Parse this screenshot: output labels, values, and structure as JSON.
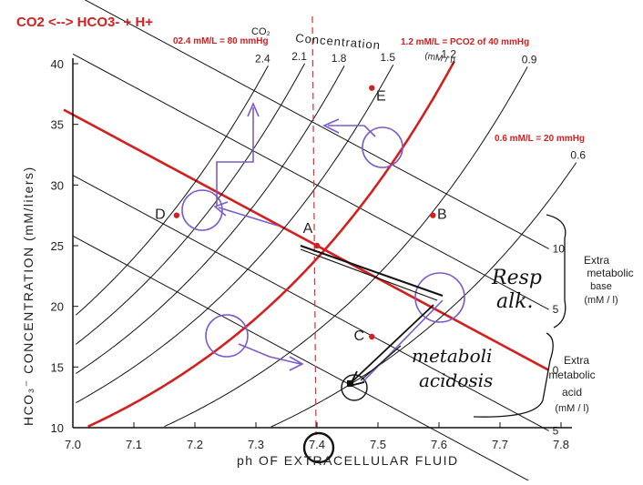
{
  "header": {
    "title": "CO2 <--> HCO3- + H+",
    "note_80": "02.4 mM/L = 80 mmHg",
    "note_40": "1.2 mM/L = PCO2 of 40 mmHg",
    "note_20": "0.6 mM/L = 20 mmHg"
  },
  "axes": {
    "x_label": "ph  OF  EXTRACELLULAR  FLUID",
    "y_label": "HCO₃⁻  CONCENTRATION   (mM/liters)"
  },
  "co2_header": {
    "co2": "CO₂",
    "concentration": "Concentration",
    "units": "(mM / l)"
  },
  "points": {
    "A": "A",
    "B": "B",
    "C": "C",
    "D": "D",
    "E": "E"
  },
  "side_labels": {
    "base_1": "Extra",
    "base_2": "metabolic",
    "base_3": "base",
    "base_4": "(mM / l)",
    "acid_1": "Extra",
    "acid_2": "metabolic",
    "acid_3": "acid",
    "acid_4": "(mM / l)"
  },
  "handwriting": {
    "resp_1": "Resp",
    "resp_2": "alk.",
    "met_1": "metaboli",
    "met_2": "acidosis"
  },
  "chart_data": {
    "type": "line",
    "xlabel": "ph  OF  EXTRACELLULAR  FLUID",
    "ylabel": "HCO₃⁻  CONCENTRATION   (mM/liters)",
    "xlim": [
      7.0,
      7.8
    ],
    "ylim": [
      10,
      40
    ],
    "x_ticks": [
      "7.0",
      "7.1",
      "7.2",
      "7.3",
      "7.4",
      "7.5",
      "7.6",
      "7.7",
      "7.8"
    ],
    "y_ticks": [
      "10",
      "15",
      "20",
      "25",
      "30",
      "35",
      "40"
    ],
    "isopleths_co2": [
      {
        "label": "2.4",
        "value": 2.4
      },
      {
        "label": "2.1",
        "value": 2.1
      },
      {
        "label": "1.8",
        "value": 1.8
      },
      {
        "label": "1.5",
        "value": 1.5
      },
      {
        "label": "1.2",
        "value": 1.2
      },
      {
        "label": "0.9",
        "value": 0.9
      },
      {
        "label": "0.6",
        "value": 0.6
      }
    ],
    "buffer_lines": [
      {
        "label": "10",
        "value": 10
      },
      {
        "label": "5",
        "value": 5
      },
      {
        "label": "0",
        "value": 0
      },
      {
        "label": "5",
        "value": -5
      },
      {
        "label": "10",
        "value": -10
      }
    ],
    "points": [
      {
        "label": "A",
        "x": 7.4,
        "y": 25
      },
      {
        "label": "B",
        "x": 7.59,
        "y": 27.5
      },
      {
        "label": "C",
        "x": 7.49,
        "y": 17.5
      },
      {
        "label": "D",
        "x": 7.17,
        "y": 27.5
      },
      {
        "label": "E",
        "x": 7.49,
        "y": 38
      }
    ],
    "highlight_x": "7.4"
  }
}
